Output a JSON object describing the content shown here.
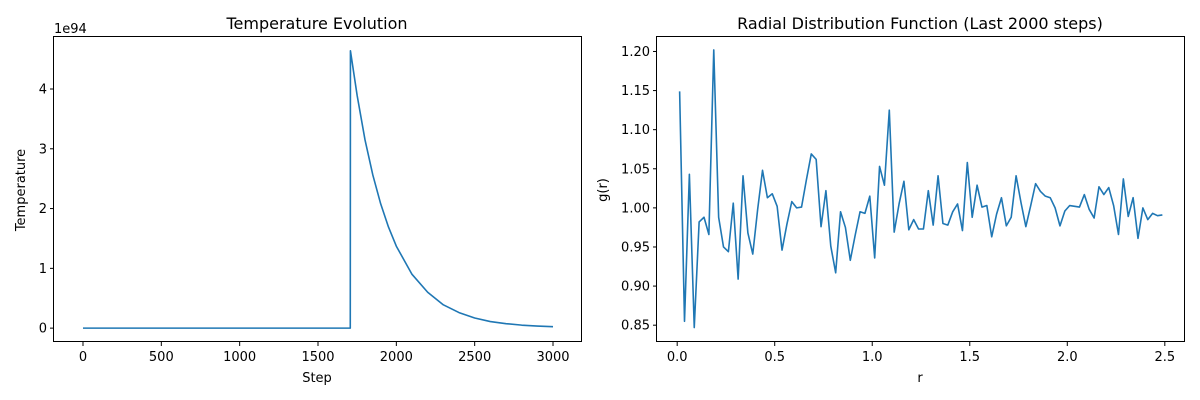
{
  "chart_data": [
    {
      "type": "line",
      "title": "Temperature Evolution",
      "xlabel": "Step",
      "ylabel": "Temperature",
      "offset_label": "1e94",
      "xlim": [
        -185,
        3185
      ],
      "ylim": [
        -0.232,
        4.87
      ],
      "xticks": [
        0,
        500,
        1000,
        1500,
        2000,
        2500,
        3000
      ],
      "xtick_labels": [
        "0",
        "500",
        "1000",
        "1500",
        "2000",
        "2500",
        "3000"
      ],
      "yticks": [
        0,
        1,
        2,
        3,
        4
      ],
      "ytick_labels": [
        "0",
        "1",
        "2",
        "3",
        "4"
      ],
      "grid": false,
      "series": [
        {
          "x": [
            0,
            1706,
            1707,
            1750,
            1800,
            1850,
            1900,
            1950,
            2000,
            2100,
            2200,
            2300,
            2400,
            2500,
            2600,
            2700,
            2800,
            2900,
            3000
          ],
          "y": [
            0,
            0,
            4.64,
            3.89,
            3.15,
            2.56,
            2.08,
            1.69,
            1.37,
            0.9,
            0.6,
            0.39,
            0.26,
            0.17,
            0.11,
            0.075,
            0.05,
            0.035,
            0.025
          ]
        }
      ]
    },
    {
      "type": "line",
      "title": "Radial Distribution Function (Last 2000 steps)",
      "xlabel": "r",
      "ylabel": "g(r)",
      "xlim": [
        -0.1035,
        2.6035
      ],
      "ylim": [
        0.8285,
        1.2185
      ],
      "xticks": [
        0.0,
        0.5,
        1.0,
        1.5,
        2.0,
        2.5
      ],
      "xtick_labels": [
        "0.0",
        "0.5",
        "1.0",
        "1.5",
        "2.0",
        "2.5"
      ],
      "yticks": [
        0.85,
        0.9,
        0.95,
        1.0,
        1.05,
        1.1,
        1.15,
        1.2
      ],
      "ytick_labels": [
        "0.85",
        "0.90",
        "0.95",
        "1.00",
        "1.05",
        "1.10",
        "1.15",
        "1.20"
      ],
      "grid": false,
      "series": [
        {
          "x": [
            0.0125,
            0.0375,
            0.0625,
            0.0875,
            0.1125,
            0.1375,
            0.1625,
            0.1875,
            0.2125,
            0.2375,
            0.2625,
            0.2875,
            0.3125,
            0.3375,
            0.3625,
            0.3875,
            0.4125,
            0.4375,
            0.4625,
            0.4875,
            0.5125,
            0.5375,
            0.5625,
            0.5875,
            0.6125,
            0.6375,
            0.6625,
            0.6875,
            0.7125,
            0.7375,
            0.7625,
            0.7875,
            0.8125,
            0.8375,
            0.8625,
            0.8875,
            0.9125,
            0.9375,
            0.9625,
            0.9875,
            1.0125,
            1.0375,
            1.0625,
            1.0875,
            1.1125,
            1.1375,
            1.1625,
            1.1875,
            1.2125,
            1.2375,
            1.2625,
            1.2875,
            1.3125,
            1.3375,
            1.3625,
            1.3875,
            1.4125,
            1.4375,
            1.4625,
            1.4875,
            1.5125,
            1.5375,
            1.5625,
            1.5875,
            1.6125,
            1.6375,
            1.6625,
            1.6875,
            1.7125,
            1.7375,
            1.7625,
            1.7875,
            1.8125,
            1.8375,
            1.8625,
            1.8875,
            1.9125,
            1.9375,
            1.9625,
            1.9875,
            2.0125,
            2.0375,
            2.0625,
            2.0875,
            2.1125,
            2.1375,
            2.1625,
            2.1875,
            2.2125,
            2.2375,
            2.2625,
            2.2875,
            2.3125,
            2.3375,
            2.3625,
            2.3875,
            2.4125,
            2.4375,
            2.4625,
            2.4875
          ],
          "y": [
            1.149,
            0.855,
            1.043,
            0.847,
            0.982,
            0.988,
            0.966,
            1.202,
            0.988,
            0.95,
            0.944,
            1.006,
            0.909,
            1.041,
            0.968,
            0.941,
            0.998,
            1.048,
            1.013,
            1.018,
            1.002,
            0.946,
            0.979,
            1.008,
            1.0,
            1.001,
            1.036,
            1.069,
            1.062,
            0.976,
            1.022,
            0.951,
            0.917,
            0.995,
            0.975,
            0.933,
            0.965,
            0.995,
            0.993,
            1.015,
            0.936,
            1.053,
            1.029,
            1.125,
            0.969,
            1.005,
            1.034,
            0.972,
            0.985,
            0.973,
            0.973,
            1.022,
            0.978,
            1.041,
            0.98,
            0.978,
            0.995,
            1.005,
            0.971,
            1.058,
            0.988,
            1.029,
            1.001,
            1.003,
            0.963,
            0.992,
            1.013,
            0.977,
            0.988,
            1.041,
            1.007,
            0.976,
            1.003,
            1.031,
            1.021,
            1.015,
            1.013,
            1.0,
            0.977,
            0.996,
            1.003,
            1.002,
            1.001,
            1.017,
            0.998,
            0.987,
            1.027,
            1.017,
            1.026,
            1.003,
            0.966,
            1.037,
            0.989,
            1.013,
            0.961,
            1.0,
            0.985,
            0.993,
            0.99,
            0.991
          ]
        }
      ]
    }
  ]
}
